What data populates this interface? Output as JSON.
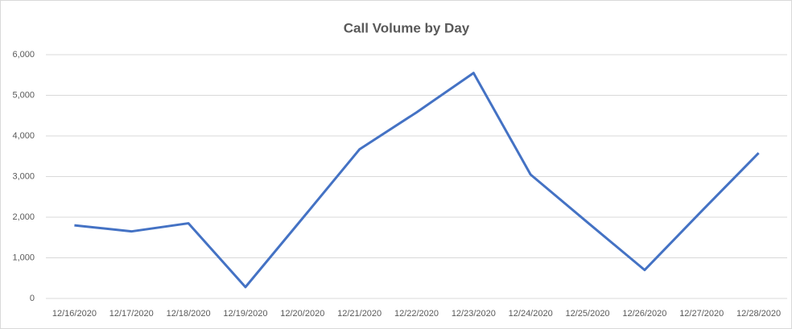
{
  "chart_data": {
    "type": "line",
    "title": "Call Volume by Day",
    "categories": [
      "12/16/2020",
      "12/17/2020",
      "12/18/2020",
      "12/19/2020",
      "12/20/2020",
      "12/21/2020",
      "12/22/2020",
      "12/23/2020",
      "12/24/2020",
      "12/25/2020",
      "12/26/2020",
      "12/27/2020",
      "12/28/2020"
    ],
    "series": [
      {
        "name": "Call Volume",
        "color": "#4472c4",
        "values": [
          1800,
          1650,
          1850,
          280,
          1970,
          3670,
          4580,
          5550,
          3050,
          1870,
          700,
          2150,
          3580
        ]
      }
    ],
    "ylim": [
      0,
      6000
    ],
    "yticks": [
      0,
      {
        "value": 1000,
        "label": "1,000"
      },
      {
        "value": 2000,
        "label": "2,000"
      },
      {
        "value": 3000,
        "label": "3,000"
      },
      {
        "value": 4000,
        "label": "4,000"
      },
      {
        "value": 5000,
        "label": "5,000"
      },
      {
        "value": 6000,
        "label": "6,000"
      }
    ],
    "grid": true
  }
}
